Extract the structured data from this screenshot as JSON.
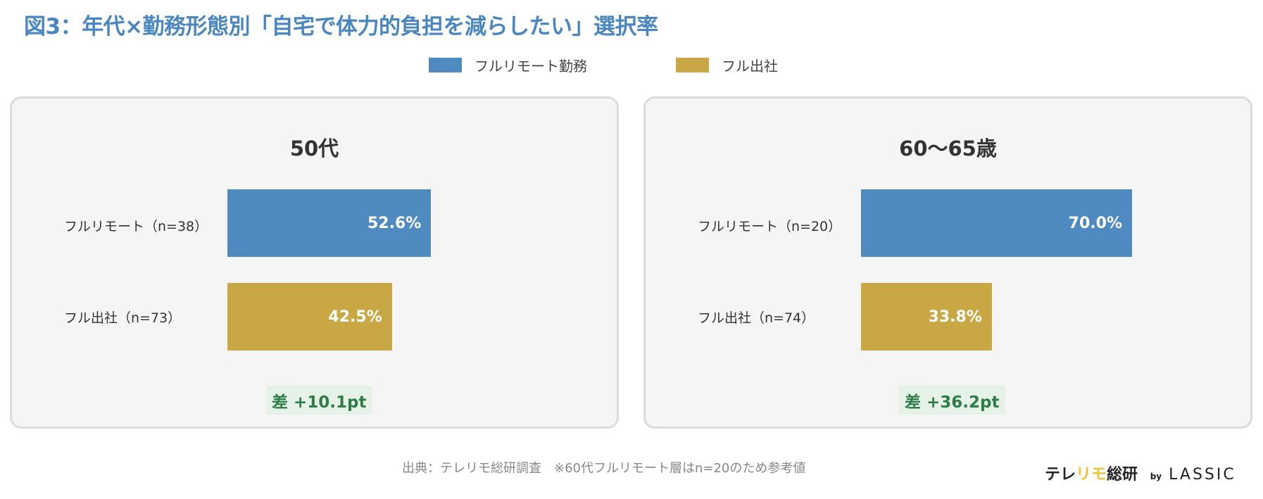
{
  "title": "図3：年代×勤務形態別「自宅で体力的負担を減らしたい」選択率",
  "colors": {
    "title": "#4a86c0",
    "full_remote": "#4f8ac1",
    "full_office": "#c9a744",
    "diff": "#2e7d46"
  },
  "chart_data": {
    "type": "bar",
    "orientation": "horizontal",
    "xlim": [
      0,
      100
    ],
    "unit": "%",
    "legend": {
      "placement": "top",
      "entries": [
        "フルリモート勤務",
        "フル出社"
      ]
    },
    "panels": [
      {
        "title": "50代",
        "categories": [
          "フルリモート（n=38）",
          "フル出社（n=73）"
        ],
        "values": [
          52.6,
          42.5
        ],
        "labels": [
          "52.6%",
          "42.5%"
        ],
        "diff": "差 +10.1pt"
      },
      {
        "title": "60〜65歳",
        "categories": [
          "フルリモート（n=20）",
          "フル出社（n=74）"
        ],
        "values": [
          70.0,
          33.8
        ],
        "labels": [
          "70.0%",
          "33.8%"
        ],
        "diff": "差 +36.2pt"
      }
    ]
  },
  "footer": "出典：テレリモ総研調査　※60代フルリモート層はn=20のため参考値",
  "logo": {
    "text1": "テレ",
    "text2": "リモ",
    "text3": "総研",
    "by": "by",
    "brand": "LASSIC"
  }
}
